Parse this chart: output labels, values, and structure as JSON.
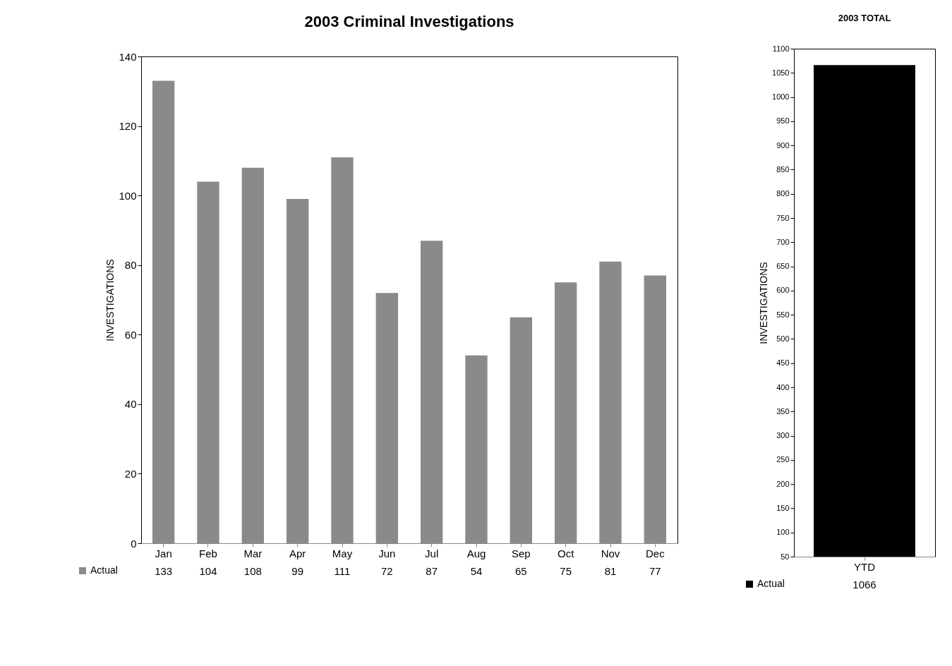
{
  "chart_data": [
    {
      "type": "bar",
      "title": "2003 Criminal Investigations",
      "ylabel": "INVESTIGATIONS",
      "categories": [
        "Jan",
        "Feb",
        "Mar",
        "Apr",
        "May",
        "Jun",
        "Jul",
        "Aug",
        "Sep",
        "Oct",
        "Nov",
        "Dec"
      ],
      "series": [
        {
          "name": "Actual",
          "color": "#8a8a8a",
          "values": [
            133,
            104,
            108,
            99,
            111,
            72,
            87,
            54,
            65,
            75,
            81,
            77
          ]
        }
      ],
      "ylim": [
        0,
        140
      ],
      "yticks": [
        0,
        20,
        40,
        60,
        80,
        100,
        120,
        140
      ],
      "grid": false,
      "legend": "bottom left",
      "data_labels": true
    },
    {
      "type": "bar",
      "title": "2003 TOTAL",
      "ylabel": "INVESTIGATIONS",
      "categories": [
        "YTD"
      ],
      "series": [
        {
          "name": "Actual",
          "color": "#000000",
          "values": [
            1066
          ]
        }
      ],
      "ylim": [
        50,
        1100
      ],
      "yticks": [
        50,
        100,
        150,
        200,
        250,
        300,
        350,
        400,
        450,
        500,
        550,
        600,
        650,
        700,
        750,
        800,
        850,
        900,
        950,
        1000,
        1050,
        1100
      ],
      "grid": false,
      "legend": "bottom left",
      "data_labels": true
    }
  ]
}
